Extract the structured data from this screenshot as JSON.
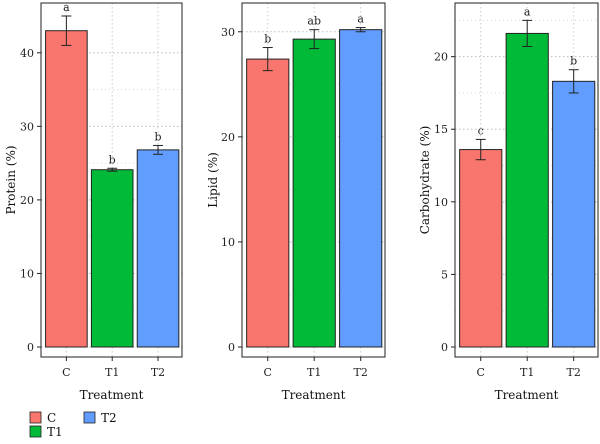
{
  "chart_data": [
    {
      "type": "bar",
      "categories": [
        "C",
        "T1",
        "T2"
      ],
      "values": [
        43.0,
        24.1,
        26.8
      ],
      "errors": [
        2.0,
        0.2,
        0.6
      ],
      "significance": [
        "a",
        "b",
        "b"
      ],
      "xlabel": "Treatment",
      "ylabel": "Protein (%)",
      "ylim": [
        0,
        45
      ],
      "yticks": [
        0,
        10,
        20,
        30,
        40
      ],
      "grid": true
    },
    {
      "type": "bar",
      "categories": [
        "C",
        "T1",
        "T2"
      ],
      "values": [
        27.4,
        29.3,
        30.2
      ],
      "errors": [
        1.1,
        0.9,
        0.2
      ],
      "significance": [
        "b",
        "ab",
        "a"
      ],
      "xlabel": "Treatment",
      "ylabel": "Lipid (%)",
      "ylim": [
        0,
        31.5
      ],
      "yticks": [
        0,
        10,
        20,
        30
      ],
      "grid": true
    },
    {
      "type": "bar",
      "categories": [
        "C",
        "T1",
        "T2"
      ],
      "values": [
        13.6,
        21.6,
        18.3
      ],
      "errors": [
        0.7,
        0.9,
        0.8
      ],
      "significance": [
        "c",
        "a",
        "b"
      ],
      "xlabel": "Treatment",
      "ylabel": "Carbohydrate (%)",
      "ylim": [
        0,
        22.8
      ],
      "yticks": [
        0,
        5,
        10,
        15,
        20
      ],
      "grid": true
    }
  ],
  "colors": {
    "C": "#F8766D",
    "T1": "#00BA38",
    "T2": "#619CFF"
  },
  "legend": {
    "placement": "bottom-left",
    "items": [
      "C",
      "T1",
      "T2"
    ]
  }
}
